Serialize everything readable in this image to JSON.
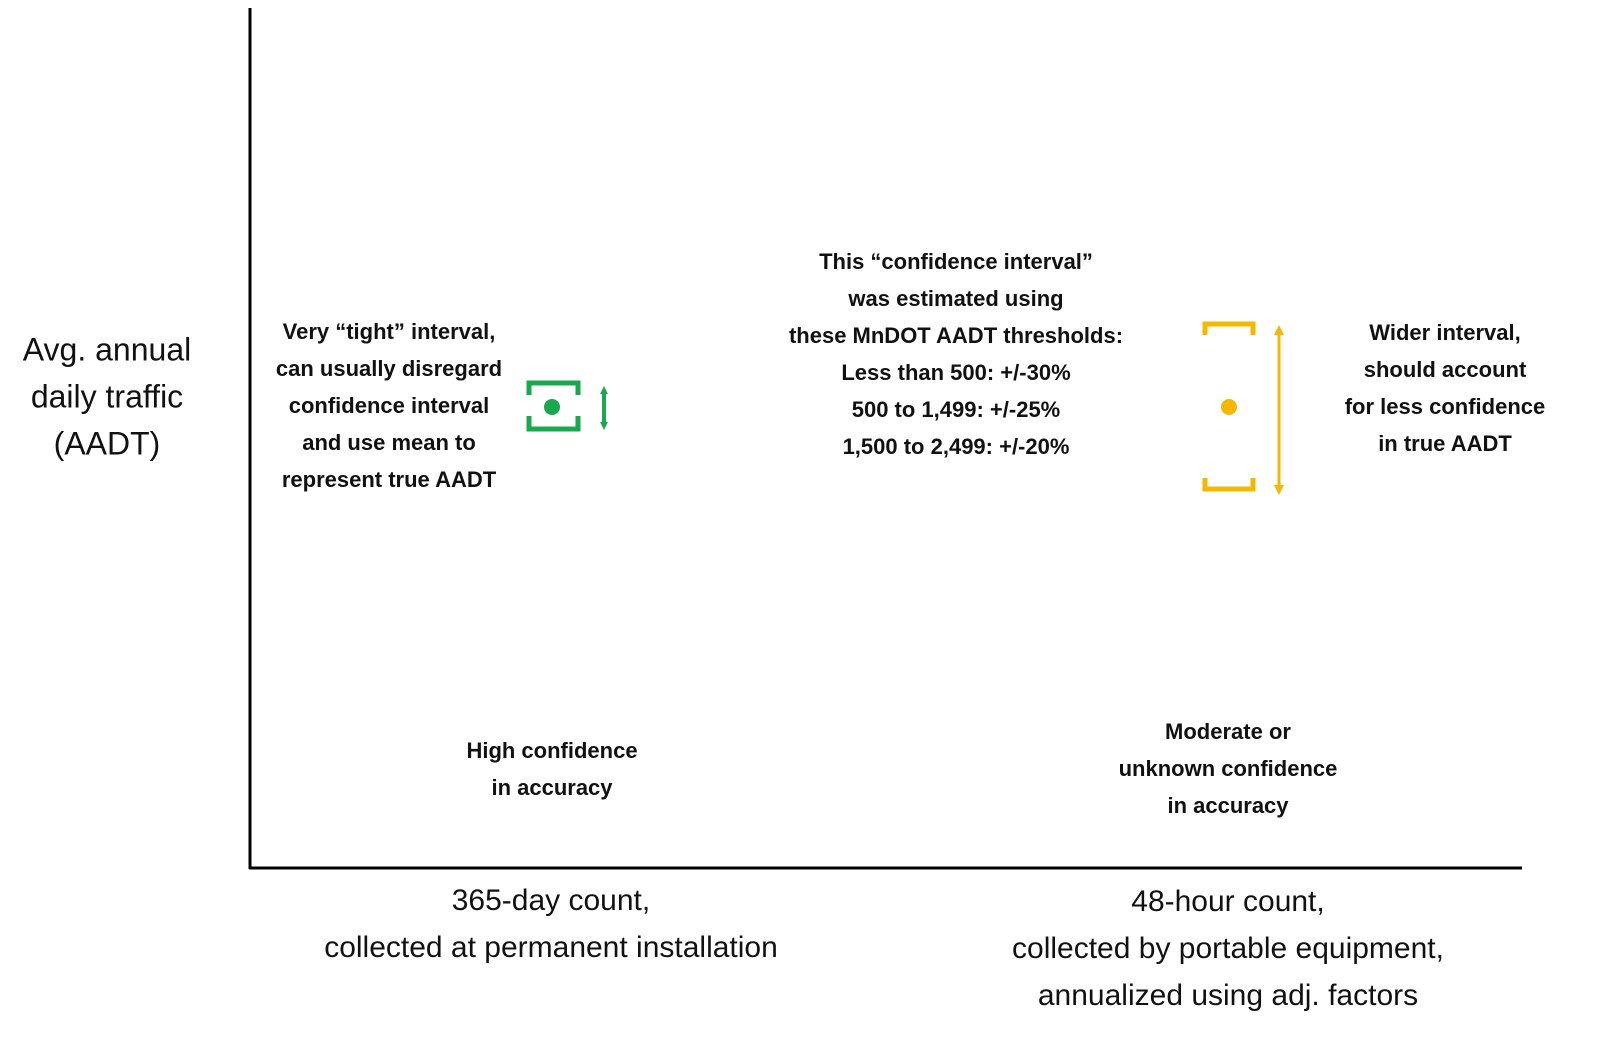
{
  "y_axis_label": [
    "Avg. annual",
    "daily traffic",
    "(AADT)"
  ],
  "left_note": [
    "Very “tight” interval,",
    "can usually disregard",
    "confidence interval",
    "and use mean to",
    "represent true AADT"
  ],
  "center_note": [
    "This “confidence interval”",
    "was estimated using",
    "these MnDOT AADT thresholds:",
    "Less than 500: +/-30%",
    "500 to 1,499: +/-25%",
    "1,500 to 2,499: +/-20%"
  ],
  "right_note": [
    "Wider interval,",
    "should account",
    "for less confidence",
    "in true AADT"
  ],
  "left_confidence": [
    "High confidence",
    "in accuracy"
  ],
  "right_confidence": [
    "Moderate or",
    "unknown confidence",
    "in accuracy"
  ],
  "left_x_label": [
    "365-day count,",
    "collected at permanent installation"
  ],
  "right_x_label": [
    "48-hour count,",
    "collected by portable equipment,",
    "annualized using adj. factors"
  ]
}
